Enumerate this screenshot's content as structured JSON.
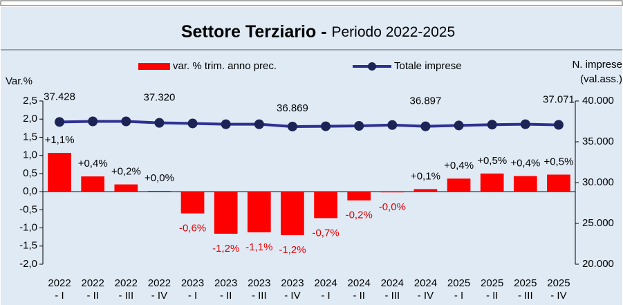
{
  "chart_data": {
    "type": "bar-line",
    "title": "Settore Terziario - ",
    "subtitle": "Periodo 2022-2025",
    "y_label": "Var.%",
    "y2_label": [
      "N. imprese",
      "(val.ass.)"
    ],
    "categories": [
      [
        "2022",
        "- I"
      ],
      [
        "2022",
        "- II"
      ],
      [
        "2022",
        "- III"
      ],
      [
        "2022",
        "- IV"
      ],
      [
        "2023",
        "- I"
      ],
      [
        "2023",
        "- II"
      ],
      [
        "2023",
        "- III"
      ],
      [
        "2023",
        "- IV"
      ],
      [
        "2024",
        "- I"
      ],
      [
        "2024",
        "- II"
      ],
      [
        "2024",
        "- III"
      ],
      [
        "2024",
        "- IV"
      ],
      [
        "2025",
        "- I"
      ],
      [
        "2025",
        "- II"
      ],
      [
        "2025",
        "- III"
      ],
      [
        "2025",
        "- IV"
      ]
    ],
    "series": [
      {
        "name": "var. % trim. anno prec.",
        "color": "#ff0000",
        "kind": "bar",
        "values": [
          1.07,
          0.42,
          0.2,
          0.02,
          -0.6,
          -1.16,
          -1.12,
          -1.2,
          -0.73,
          -0.24,
          -0.02,
          0.07,
          0.36,
          0.5,
          0.43,
          0.47
        ],
        "value_labels": [
          "+1,1%",
          "+0,4%",
          "+0,2%",
          "+0,0%",
          "-0,6%",
          "-1,2%",
          "-1,1%",
          "-1,2%",
          "-0,7%",
          "-0,2%",
          "-0,0%",
          "+0,1%",
          "+0,4%",
          "+0,5%",
          "+0,4%",
          "+0,5%"
        ]
      },
      {
        "name": "Totale imprese",
        "color": "#2e3192",
        "kind": "line",
        "axis": "y2",
        "values": [
          37428,
          37500,
          37500,
          37320,
          37250,
          37150,
          37150,
          36869,
          36900,
          36950,
          37050,
          36897,
          37000,
          37100,
          37150,
          37071
        ],
        "value_labels": [
          "37.428",
          null,
          null,
          "37.320",
          null,
          null,
          null,
          "36.869",
          null,
          null,
          null,
          "36.897",
          null,
          null,
          null,
          "37.071"
        ]
      }
    ],
    "ylim": [
      -2,
      2.5
    ],
    "yticks": [
      {
        "value": -2,
        "label": "-2,0"
      },
      {
        "value": -1.5,
        "label": "-1,5"
      },
      {
        "value": -1,
        "label": "-1,0"
      },
      {
        "value": -0.5,
        "label": "-0,5"
      },
      {
        "value": 0,
        "label": "0,0"
      },
      {
        "value": 0.5,
        "label": "0,5"
      },
      {
        "value": 1,
        "label": "1,0"
      },
      {
        "value": 1.5,
        "label": "1,5"
      },
      {
        "value": 2,
        "label": "2,0"
      },
      {
        "value": 2.5,
        "label": "2,5"
      }
    ],
    "y2lim": [
      20000,
      40000
    ],
    "y2ticks": [
      {
        "value": 20000,
        "label": "20.000"
      },
      {
        "value": 25000,
        "label": "25.000"
      },
      {
        "value": 30000,
        "label": "30.000"
      },
      {
        "value": 35000,
        "label": "35.000"
      },
      {
        "value": 40000,
        "label": "40.000"
      }
    ]
  }
}
